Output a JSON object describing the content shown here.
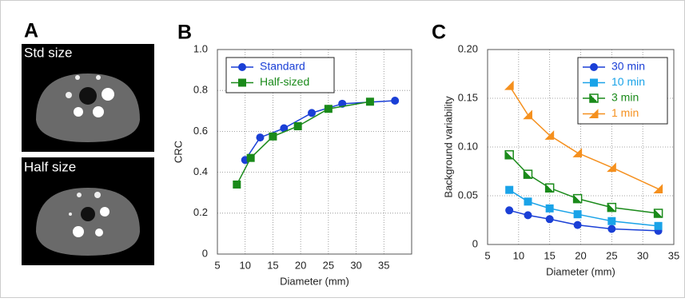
{
  "panel_a": {
    "label": "A",
    "images": [
      "Std size",
      "Half size"
    ]
  },
  "chart_data": [
    {
      "type": "line",
      "panel_label": "B",
      "xlabel": "Diameter (mm)",
      "ylabel": "CRC",
      "xlim": [
        5,
        40
      ],
      "xticks": [
        5,
        10,
        15,
        20,
        25,
        30,
        35
      ],
      "ylim": [
        0,
        1
      ],
      "yticks": [
        0,
        0.2,
        0.4,
        0.6,
        0.8,
        {
          "value": 1,
          "label": "1.0"
        }
      ],
      "grid": true,
      "legend": "upper left",
      "series": [
        {
          "name": "Standard",
          "color": "#1a3fd6",
          "marker": "circle",
          "x": [
            10,
            12.7,
            17,
            22,
            27.5,
            37
          ],
          "values": [
            0.46,
            0.57,
            0.615,
            0.69,
            0.735,
            0.75
          ]
        },
        {
          "name": "Half-sized",
          "color": "#1a8a1a",
          "marker": "square",
          "x": [
            8.5,
            11,
            15,
            19.5,
            25,
            32.5
          ],
          "values": [
            0.34,
            0.47,
            0.575,
            0.625,
            0.71,
            0.745
          ]
        }
      ]
    },
    {
      "type": "line",
      "panel_label": "C",
      "xlabel": "Diameter (mm)",
      "ylabel": "Background variability",
      "xlim": [
        5,
        35
      ],
      "xticks": [
        5,
        10,
        15,
        20,
        25,
        30,
        35
      ],
      "ylim": [
        0,
        0.2
      ],
      "yticks": [
        0,
        0.05,
        {
          "value": 0.1,
          "label": "0.10"
        },
        0.15,
        {
          "value": 0.2,
          "label": "0.20"
        }
      ],
      "grid": true,
      "legend": "upper right",
      "x": [
        8.5,
        11.5,
        15,
        19.5,
        25,
        32.5
      ],
      "series": [
        {
          "name": "30 min",
          "color": "#1a3fd6",
          "marker": "circle",
          "values": [
            0.035,
            0.03,
            0.026,
            0.02,
            0.016,
            0.014
          ]
        },
        {
          "name": "10 min",
          "color": "#1aa3e8",
          "marker": "square",
          "values": [
            0.056,
            0.044,
            0.037,
            0.031,
            0.024,
            0.019
          ]
        },
        {
          "name": "3 min",
          "color": "#1a8a1a",
          "marker": "half-square",
          "values": [
            0.092,
            0.072,
            0.058,
            0.047,
            0.038,
            0.032
          ]
        },
        {
          "name": "1 min",
          "color": "#f5901e",
          "marker": "triangle",
          "values": [
            0.163,
            0.133,
            0.112,
            0.094,
            0.079,
            0.057
          ]
        }
      ]
    }
  ]
}
